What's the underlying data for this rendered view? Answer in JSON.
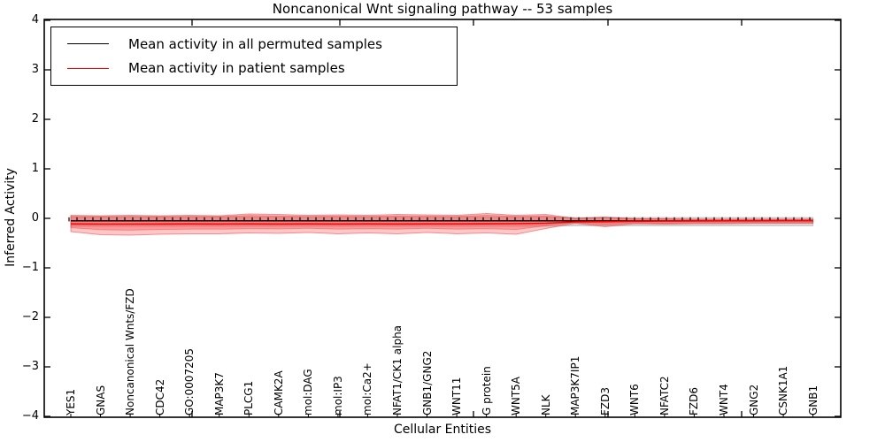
{
  "figure": {
    "title": "Noncanonical Wnt signaling pathway -- 53 samples",
    "xlabel": "Cellular Entities",
    "ylabel": "Inferred Activity"
  },
  "legend": {
    "items": [
      {
        "label": "Mean activity in all permuted samples",
        "color": "#000000"
      },
      {
        "label": "Mean activity in patient samples",
        "color": "#ff0000"
      }
    ]
  },
  "chart_data": {
    "type": "line",
    "title": "Noncanonical Wnt signaling pathway -- 53 samples",
    "xlabel": "Cellular Entities",
    "ylabel": "Inferred Activity",
    "ylim": [
      -4,
      4
    ],
    "yticks": [
      4,
      3,
      2,
      1,
      0,
      -1,
      -2,
      -3,
      -4
    ],
    "grid": false,
    "legend_position": "upper left",
    "categories": [
      "YES1",
      "GNAS",
      "Noncanonical Wnts/FZD",
      "CDC42",
      "GO:0007205",
      "MAP3K7",
      "PLCG1",
      "CAMK2A",
      "mol:DAG",
      "mol:IP3",
      "mol:Ca2+",
      "NFAT1/CK1 alpha",
      "GNB1/GNG2",
      "WNT11",
      "G protein",
      "WNT5A",
      "NLK",
      "MAP3K7IP1",
      "FZD3",
      "WNT6",
      "NFATC2",
      "FZD6",
      "WNT4",
      "GNG2",
      "CSNK1A1",
      "GNB1"
    ],
    "series": [
      {
        "name": "Mean activity in all permuted samples",
        "color": "#000000",
        "values": [
          -0.05,
          -0.05,
          -0.05,
          -0.05,
          -0.05,
          -0.05,
          -0.05,
          -0.05,
          -0.05,
          -0.05,
          -0.05,
          -0.05,
          -0.05,
          -0.05,
          -0.05,
          -0.05,
          -0.05,
          -0.05,
          -0.05,
          -0.05,
          -0.05,
          -0.05,
          -0.05,
          -0.05,
          -0.05,
          -0.05
        ]
      },
      {
        "name": "Mean activity in patient samples",
        "color": "#ff0000",
        "values": [
          -0.112,
          -0.116,
          -0.116,
          -0.114,
          -0.112,
          -0.114,
          -0.112,
          -0.114,
          -0.112,
          -0.114,
          -0.112,
          -0.114,
          -0.112,
          -0.112,
          -0.11,
          -0.107,
          -0.098,
          -0.071,
          -0.068,
          -0.059,
          -0.055,
          -0.052,
          -0.05,
          -0.05,
          -0.048,
          -0.048
        ]
      }
    ],
    "bands": [
      {
        "name": "permuted-range",
        "color": "rgba(145,145,145,0.35)",
        "stroke": "rgba(120,120,120,0.35)",
        "upper": [
          0.03,
          0.03,
          0.03,
          0.03,
          0.03,
          0.03,
          0.03,
          0.03,
          0.03,
          0.03,
          0.03,
          0.03,
          0.03,
          0.03,
          0.03,
          0.03,
          0.03,
          0.018,
          0.018,
          0.018,
          0.018,
          0.018,
          0.018,
          0.018,
          0.018,
          0.018
        ],
        "lower": [
          -0.16,
          -0.16,
          -0.16,
          -0.16,
          -0.16,
          -0.16,
          -0.16,
          -0.16,
          -0.16,
          -0.16,
          -0.16,
          -0.16,
          -0.16,
          -0.16,
          -0.16,
          -0.16,
          -0.16,
          -0.15,
          -0.15,
          -0.15,
          -0.15,
          -0.15,
          -0.15,
          -0.15,
          -0.15,
          -0.15
        ]
      },
      {
        "name": "patient-range",
        "color": "rgba(255,70,70,0.30)",
        "stroke": "rgba(220,40,40,0.45)",
        "upper": [
          0.063,
          0.054,
          0.063,
          0.054,
          0.063,
          0.054,
          0.089,
          0.08,
          0.063,
          0.071,
          0.063,
          0.08,
          0.071,
          0.063,
          0.098,
          0.063,
          0.08,
          0.0,
          0.027,
          -0.009,
          -0.009,
          -0.018,
          -0.018,
          -0.018,
          -0.018,
          -0.018
        ],
        "lower": [
          -0.268,
          -0.33,
          -0.339,
          -0.321,
          -0.313,
          -0.313,
          -0.295,
          -0.304,
          -0.286,
          -0.313,
          -0.295,
          -0.313,
          -0.286,
          -0.313,
          -0.295,
          -0.321,
          -0.205,
          -0.098,
          -0.17,
          -0.107,
          -0.116,
          -0.107,
          -0.107,
          -0.098,
          -0.098,
          -0.098
        ]
      },
      {
        "name": "patient-std",
        "color": "rgba(255,70,70,0.35)",
        "stroke": "rgba(220,40,40,0.30)",
        "upper": [
          0.04,
          0.035,
          0.04,
          0.035,
          0.04,
          0.035,
          0.06,
          0.05,
          0.04,
          0.045,
          0.04,
          0.05,
          0.045,
          0.04,
          0.065,
          0.04,
          0.05,
          -0.005,
          0.015,
          -0.012,
          -0.012,
          -0.02,
          -0.02,
          -0.02,
          -0.02,
          -0.02
        ],
        "lower": [
          -0.19,
          -0.23,
          -0.24,
          -0.225,
          -0.22,
          -0.22,
          -0.21,
          -0.215,
          -0.2,
          -0.22,
          -0.21,
          -0.22,
          -0.2,
          -0.22,
          -0.21,
          -0.225,
          -0.15,
          -0.085,
          -0.13,
          -0.09,
          -0.1,
          -0.09,
          -0.09,
          -0.085,
          -0.085,
          -0.085
        ]
      }
    ]
  }
}
